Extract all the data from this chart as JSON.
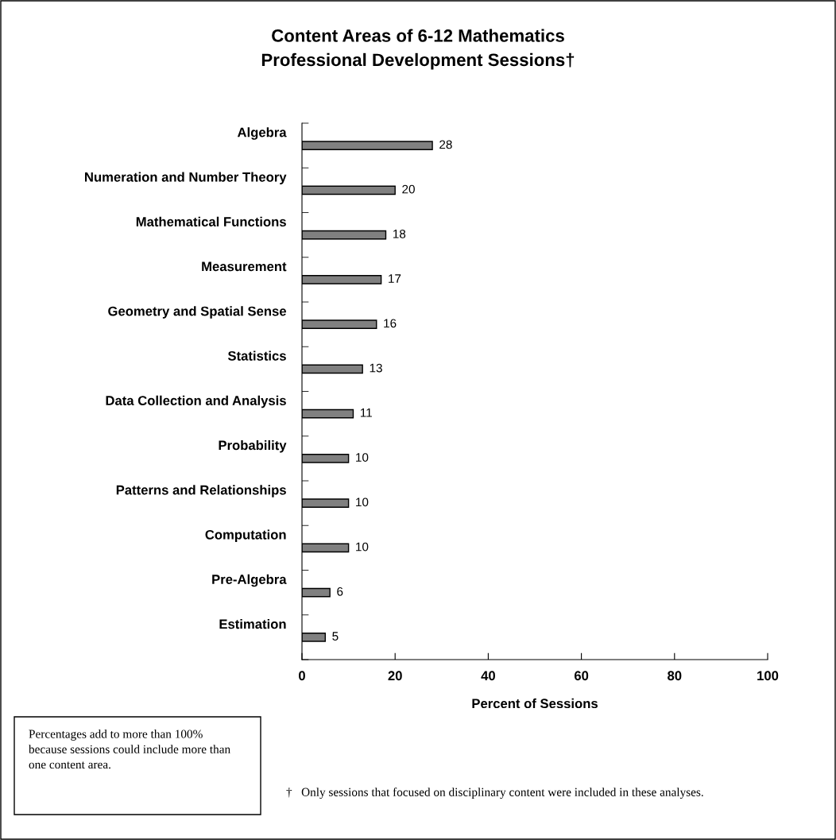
{
  "chart_data": {
    "type": "bar",
    "orientation": "horizontal",
    "title": "Content Areas of 6-12 Mathematics\nProfessional Development Sessions†",
    "xlabel": "Percent of Sessions",
    "categories": [
      "Algebra",
      "Numeration and Number Theory",
      "Mathematical Functions",
      "Measurement",
      "Geometry and Spatial Sense",
      "Statistics",
      "Data Collection and Analysis",
      "Probability",
      "Patterns and Relationships",
      "Computation",
      "Pre-Algebra",
      "Estimation"
    ],
    "values": [
      28,
      20,
      18,
      17,
      16,
      13,
      11,
      10,
      10,
      10,
      6,
      5
    ],
    "color": "#808080",
    "data_labels": true,
    "grid": false,
    "legend": false,
    "xlim": [
      0,
      100
    ],
    "xticks": [
      0,
      20,
      40,
      60,
      80,
      100
    ],
    "annotations": [
      "Percentages add to more than 100% because sessions could include more than one content area.",
      "†   Only sessions that focused on disciplinary content were included in these analyses."
    ]
  }
}
